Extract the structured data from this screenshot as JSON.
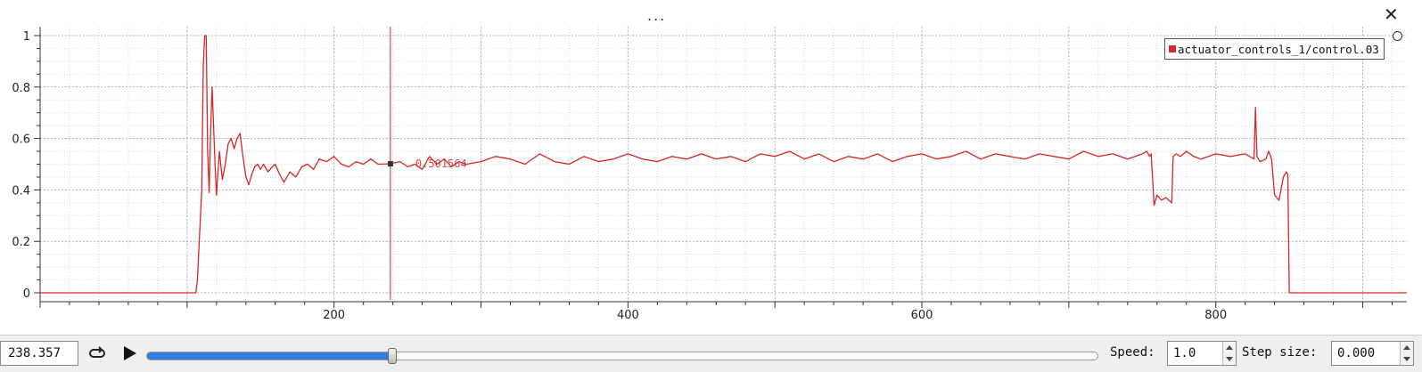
{
  "header": {
    "menu_label": "...",
    "close_label": "✕"
  },
  "legend": {
    "label": "actuator_controls_1/control.03",
    "color": "#d62728"
  },
  "tracker": {
    "x": 238.357,
    "label": "0.501564"
  },
  "controls": {
    "time_value": "238.357",
    "speed_label": "Speed:",
    "speed_value": "1.0",
    "step_label": "Step size:",
    "step_value": "0.000",
    "progress_fraction": 0.258,
    "accent_color": "#2f7fe0"
  },
  "chart_data": {
    "type": "line",
    "title": "",
    "xlabel": "",
    "ylabel": "",
    "xlim": [
      0,
      930
    ],
    "ylim": [
      0,
      1
    ],
    "grid": true,
    "legend_position": "top-right",
    "xticks": [
      200,
      400,
      600,
      800
    ],
    "yticks": [
      0,
      0.2,
      0.4,
      0.6,
      0.8,
      1
    ],
    "series": [
      {
        "name": "actuator_controls_1/control.03",
        "color": "#d62728",
        "x": [
          0,
          106,
          107,
          110,
          111,
          112,
          113,
          114,
          115,
          116,
          117,
          119,
          120,
          122,
          124,
          126,
          128,
          130,
          132,
          134,
          136,
          138,
          140,
          142,
          144,
          146,
          148,
          150,
          152,
          155,
          158,
          160,
          163,
          166,
          170,
          174,
          178,
          182,
          186,
          190,
          195,
          200,
          205,
          210,
          215,
          220,
          225,
          230,
          238,
          245,
          250,
          255,
          260,
          265,
          270,
          275,
          280,
          285,
          290,
          300,
          310,
          320,
          330,
          340,
          350,
          360,
          370,
          380,
          390,
          400,
          410,
          420,
          430,
          440,
          450,
          460,
          470,
          480,
          490,
          500,
          510,
          520,
          530,
          540,
          550,
          560,
          570,
          580,
          590,
          600,
          610,
          620,
          630,
          640,
          650,
          660,
          670,
          680,
          690,
          700,
          710,
          720,
          730,
          740,
          750,
          753,
          755,
          756,
          758,
          760,
          763,
          766,
          770,
          771,
          773,
          776,
          780,
          785,
          790,
          800,
          810,
          820,
          826,
          827,
          828,
          830,
          834,
          836,
          838,
          840,
          843,
          846,
          848,
          849,
          850,
          930
        ],
        "y": [
          0,
          0,
          0.05,
          0.4,
          0.88,
          1.0,
          1.0,
          0.55,
          0.39,
          0.62,
          0.8,
          0.5,
          0.38,
          0.55,
          0.44,
          0.5,
          0.58,
          0.6,
          0.56,
          0.6,
          0.62,
          0.53,
          0.45,
          0.42,
          0.46,
          0.49,
          0.5,
          0.48,
          0.5,
          0.47,
          0.49,
          0.5,
          0.46,
          0.43,
          0.47,
          0.45,
          0.49,
          0.5,
          0.48,
          0.52,
          0.51,
          0.53,
          0.5,
          0.49,
          0.51,
          0.5,
          0.52,
          0.5,
          0.501564,
          0.51,
          0.49,
          0.5,
          0.48,
          0.53,
          0.5,
          0.52,
          0.49,
          0.51,
          0.5,
          0.51,
          0.53,
          0.52,
          0.5,
          0.54,
          0.51,
          0.5,
          0.53,
          0.51,
          0.52,
          0.54,
          0.52,
          0.51,
          0.53,
          0.52,
          0.54,
          0.52,
          0.53,
          0.51,
          0.54,
          0.53,
          0.55,
          0.52,
          0.54,
          0.51,
          0.53,
          0.52,
          0.54,
          0.51,
          0.53,
          0.54,
          0.52,
          0.53,
          0.55,
          0.52,
          0.54,
          0.53,
          0.52,
          0.54,
          0.53,
          0.52,
          0.55,
          0.53,
          0.54,
          0.52,
          0.54,
          0.55,
          0.53,
          0.54,
          0.34,
          0.38,
          0.36,
          0.37,
          0.35,
          0.53,
          0.54,
          0.53,
          0.55,
          0.53,
          0.52,
          0.54,
          0.53,
          0.54,
          0.52,
          0.72,
          0.53,
          0.51,
          0.52,
          0.55,
          0.52,
          0.38,
          0.36,
          0.45,
          0.47,
          0.46,
          0.0,
          0.0
        ]
      }
    ]
  }
}
